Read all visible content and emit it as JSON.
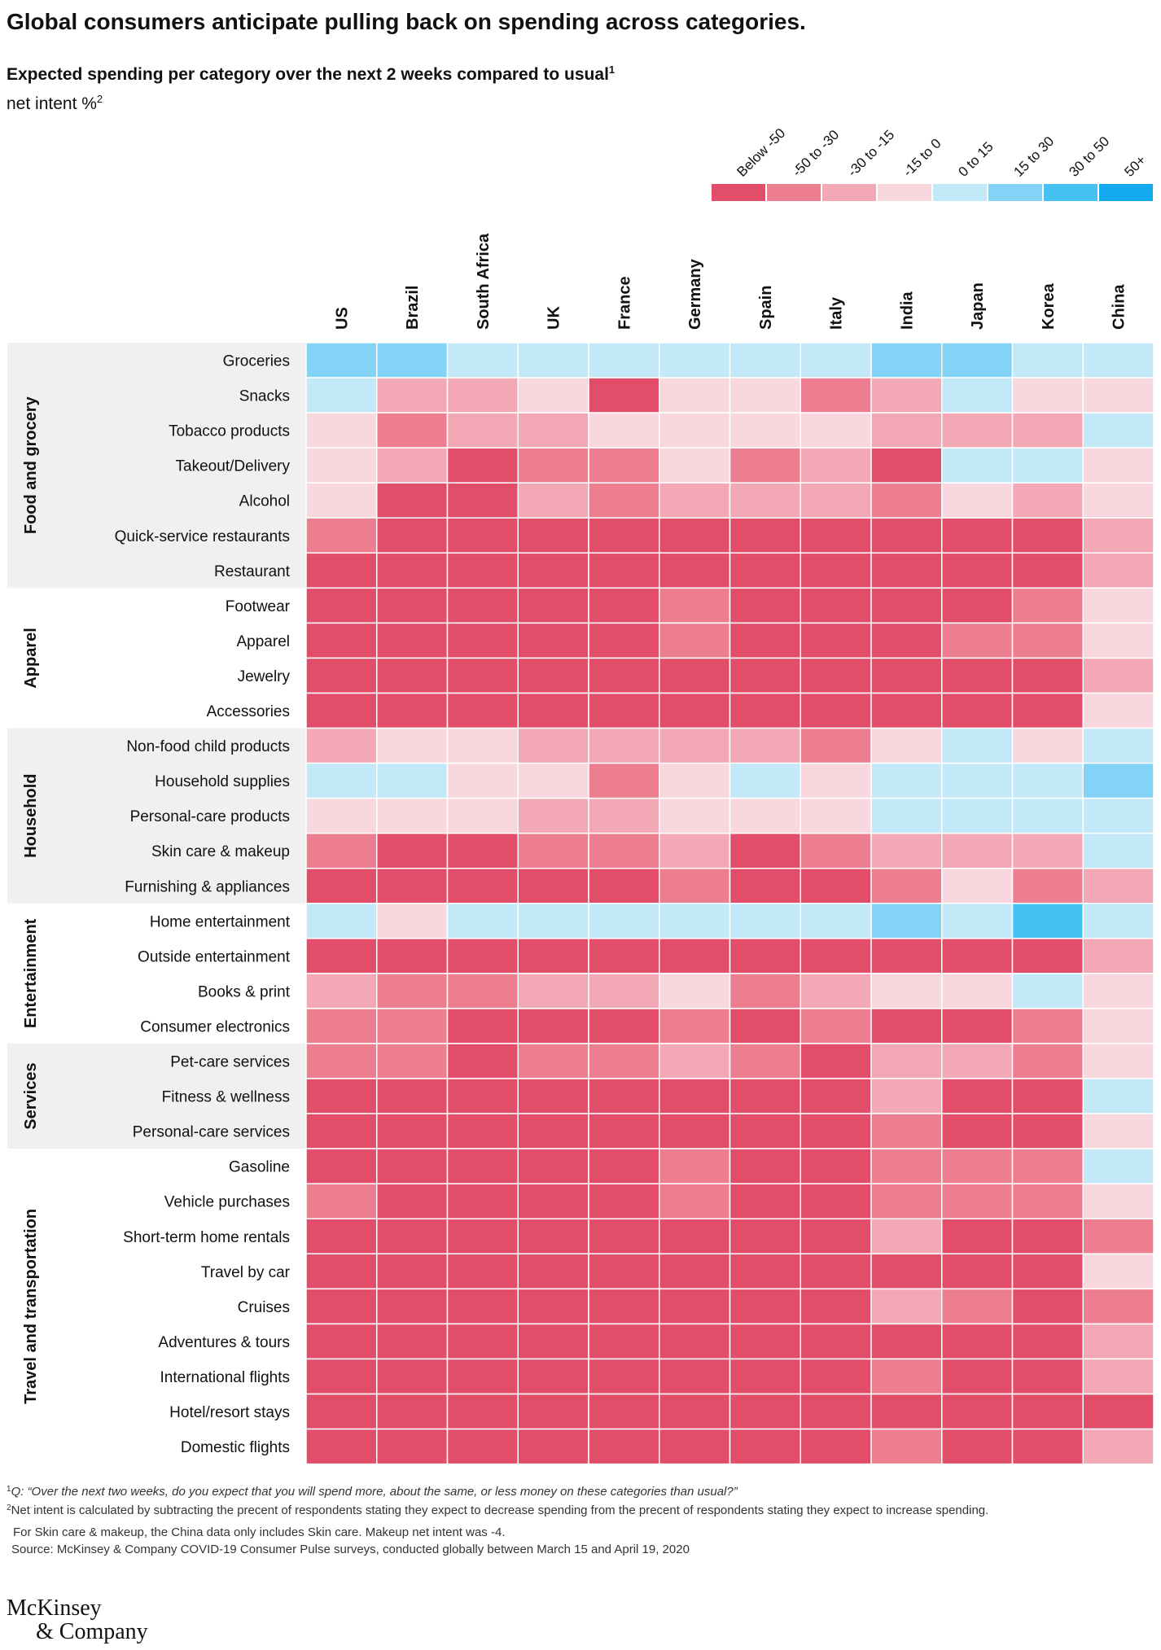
{
  "chart_data": {
    "type": "heatmap",
    "title": "Global consumers anticipate pulling back on spending across categories.",
    "subtitle": "Expected spending per category over the next 2 weeks compared to usual",
    "subtitle_note": "1",
    "unit_label": "net intent %",
    "unit_note": "2",
    "columns": [
      "US",
      "Brazil",
      "South Africa",
      "UK",
      "France",
      "Germany",
      "Spain",
      "Italy",
      "India",
      "Japan",
      "Korea",
      "China"
    ],
    "legend": [
      {
        "label": "Below -50",
        "color": "#e24d69"
      },
      {
        "label": "-50 to -30",
        "color": "#ec7e8f"
      },
      {
        "label": "-30 to -15",
        "color": "#f2a9b5"
      },
      {
        "label": "-15 to 0",
        "color": "#f8d8de"
      },
      {
        "label": "0 to 15",
        "color": "#c3e8f8"
      },
      {
        "label": "15 to 30",
        "color": "#82d3f5"
      },
      {
        "label": "30 to 50",
        "color": "#47c0f2"
      },
      {
        "label": "50+",
        "color": "#12a9ef"
      }
    ],
    "groups": [
      {
        "name": "Food and grocery",
        "shaded": true,
        "rows": [
          {
            "name": "Groceries",
            "values": [
              5,
              5,
              4,
              4,
              4,
              4,
              4,
              4,
              5,
              5,
              4,
              4
            ]
          },
          {
            "name": "Snacks",
            "values": [
              4,
              2,
              2,
              3,
              0,
              3,
              3,
              1,
              2,
              4,
              3,
              3
            ]
          },
          {
            "name": "Tobacco products",
            "values": [
              3,
              1,
              2,
              2,
              3,
              3,
              3,
              3,
              2,
              2,
              2,
              4
            ]
          },
          {
            "name": "Takeout/Delivery",
            "values": [
              3,
              2,
              0,
              1,
              1,
              3,
              1,
              2,
              0,
              4,
              4,
              3
            ]
          },
          {
            "name": "Alcohol",
            "values": [
              3,
              0,
              0,
              2,
              1,
              2,
              2,
              2,
              1,
              3,
              2,
              3
            ]
          },
          {
            "name": "Quick-service restaurants",
            "values": [
              1,
              0,
              0,
              0,
              0,
              0,
              0,
              0,
              0,
              0,
              0,
              2
            ]
          },
          {
            "name": "Restaurant",
            "values": [
              0,
              0,
              0,
              0,
              0,
              0,
              0,
              0,
              0,
              0,
              0,
              2
            ]
          }
        ]
      },
      {
        "name": "Apparel",
        "shaded": false,
        "rows": [
          {
            "name": "Footwear",
            "values": [
              0,
              0,
              0,
              0,
              0,
              1,
              0,
              0,
              0,
              0,
              1,
              3
            ]
          },
          {
            "name": "Apparel",
            "values": [
              0,
              0,
              0,
              0,
              0,
              1,
              0,
              0,
              0,
              1,
              1,
              3
            ]
          },
          {
            "name": "Jewelry",
            "values": [
              0,
              0,
              0,
              0,
              0,
              0,
              0,
              0,
              0,
              0,
              0,
              2
            ]
          },
          {
            "name": "Accessories",
            "values": [
              0,
              0,
              0,
              0,
              0,
              0,
              0,
              0,
              0,
              0,
              0,
              3
            ]
          }
        ]
      },
      {
        "name": "Household",
        "shaded": true,
        "rows": [
          {
            "name": "Non-food child products",
            "values": [
              2,
              3,
              3,
              2,
              2,
              2,
              2,
              1,
              3,
              4,
              3,
              4
            ]
          },
          {
            "name": "Household supplies",
            "values": [
              4,
              4,
              3,
              3,
              1,
              3,
              4,
              3,
              4,
              4,
              4,
              5
            ]
          },
          {
            "name": "Personal-care products",
            "values": [
              3,
              3,
              3,
              2,
              2,
              3,
              3,
              3,
              4,
              4,
              4,
              4
            ]
          },
          {
            "name": "Skin care & makeup",
            "values": [
              1,
              0,
              0,
              1,
              1,
              2,
              0,
              1,
              2,
              2,
              2,
              4
            ]
          },
          {
            "name": "Furnishing & appliances",
            "values": [
              0,
              0,
              0,
              0,
              0,
              1,
              0,
              0,
              1,
              3,
              1,
              2
            ]
          }
        ]
      },
      {
        "name": "Entertainment",
        "shaded": false,
        "rows": [
          {
            "name": "Home entertainment",
            "values": [
              4,
              3,
              4,
              4,
              4,
              4,
              4,
              4,
              5,
              4,
              6,
              4
            ]
          },
          {
            "name": "Outside entertainment",
            "values": [
              0,
              0,
              0,
              0,
              0,
              0,
              0,
              0,
              0,
              0,
              0,
              2
            ]
          },
          {
            "name": "Books & print",
            "values": [
              2,
              1,
              1,
              2,
              2,
              3,
              1,
              2,
              3,
              3,
              4,
              3
            ]
          },
          {
            "name": "Consumer electronics",
            "values": [
              1,
              1,
              0,
              0,
              0,
              1,
              0,
              1,
              0,
              0,
              1,
              3
            ]
          }
        ]
      },
      {
        "name": "Services",
        "shaded": true,
        "rows": [
          {
            "name": "Pet-care services",
            "values": [
              1,
              1,
              0,
              1,
              1,
              2,
              1,
              0,
              2,
              2,
              1,
              3
            ]
          },
          {
            "name": "Fitness & wellness",
            "values": [
              0,
              0,
              0,
              0,
              0,
              0,
              0,
              0,
              2,
              0,
              0,
              4
            ]
          },
          {
            "name": "Personal-care services",
            "values": [
              0,
              0,
              0,
              0,
              0,
              0,
              0,
              0,
              1,
              0,
              0,
              3
            ]
          }
        ]
      },
      {
        "name": "Travel and transportation",
        "shaded": false,
        "rows": [
          {
            "name": "Gasoline",
            "values": [
              0,
              0,
              0,
              0,
              0,
              1,
              0,
              0,
              1,
              1,
              1,
              4
            ]
          },
          {
            "name": "Vehicle purchases",
            "values": [
              1,
              0,
              0,
              0,
              0,
              1,
              0,
              0,
              1,
              1,
              1,
              3
            ]
          },
          {
            "name": "Short-term home rentals",
            "values": [
              0,
              0,
              0,
              0,
              0,
              0,
              0,
              0,
              2,
              0,
              0,
              1
            ]
          },
          {
            "name": "Travel by car",
            "values": [
              0,
              0,
              0,
              0,
              0,
              0,
              0,
              0,
              0,
              0,
              0,
              3
            ]
          },
          {
            "name": "Cruises",
            "values": [
              0,
              0,
              0,
              0,
              0,
              0,
              0,
              0,
              2,
              1,
              0,
              1
            ]
          },
          {
            "name": "Adventures & tours",
            "values": [
              0,
              0,
              0,
              0,
              0,
              0,
              0,
              0,
              0,
              0,
              0,
              2
            ]
          },
          {
            "name": "International flights",
            "values": [
              0,
              0,
              0,
              0,
              0,
              0,
              0,
              0,
              1,
              0,
              0,
              2
            ]
          },
          {
            "name": "Hotel/resort stays",
            "values": [
              0,
              0,
              0,
              0,
              0,
              0,
              0,
              0,
              0,
              0,
              0,
              0
            ]
          },
          {
            "name": "Domestic flights",
            "values": [
              0,
              0,
              0,
              0,
              0,
              0,
              0,
              0,
              1,
              0,
              0,
              2
            ]
          }
        ]
      }
    ],
    "notes": [
      {
        "marker": "1",
        "text": "Q: “Over the next two weeks, do you expect that you will spend more, about the same, or less money on these categories than usual?”",
        "italic": true
      },
      {
        "marker": "2",
        "text": "Net intent is calculated by subtracting the precent of respondents stating they expect to decrease spending from the precent of respondents stating they expect to increase spending.",
        "italic": false
      },
      {
        "marker": "",
        "text": "For Skin care & makeup, the China data only includes Skin care. Makeup net intent was -4.",
        "italic": false
      }
    ],
    "source": "Source: McKinsey & Company COVID-19 Consumer Pulse surveys, conducted globally between March 15 and April 19, 2020",
    "brand": [
      "McKinsey",
      "& Company"
    ]
  }
}
